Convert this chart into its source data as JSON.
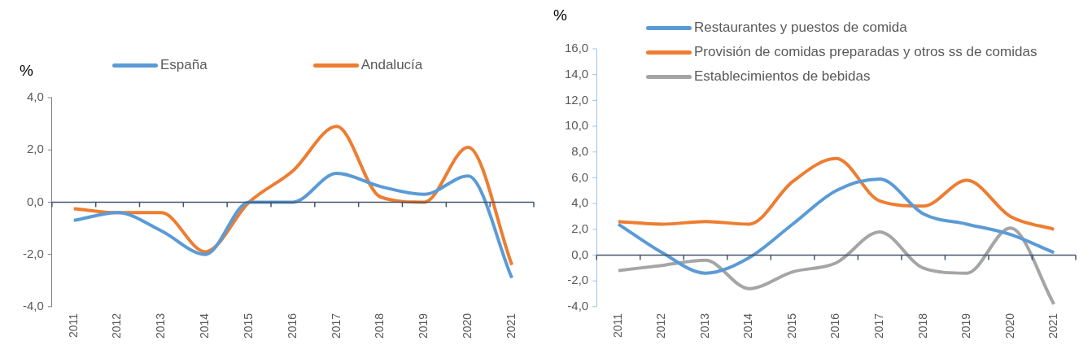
{
  "chart_data": [
    {
      "type": "line",
      "ylabel": "%",
      "categories": [
        "2011",
        "2012",
        "2013",
        "2014",
        "2015",
        "2016",
        "2017",
        "2018",
        "2019",
        "2020",
        "2021"
      ],
      "series": [
        {
          "name": "España",
          "color": "#5b9bd5",
          "values": [
            -0.7,
            -0.4,
            -1.1,
            -2.0,
            0.0,
            0.0,
            1.1,
            0.6,
            0.3,
            1.0,
            -2.9
          ]
        },
        {
          "name": "Andalucía",
          "color": "#ed7d31",
          "values": [
            -0.25,
            -0.4,
            -0.4,
            -1.9,
            0.0,
            1.2,
            2.9,
            0.2,
            0.0,
            2.1,
            -2.4
          ]
        }
      ],
      "ylim": [
        -4,
        4
      ],
      "yticks": [
        {
          "value": -4,
          "label": "-4,0"
        },
        {
          "value": -2,
          "label": "-2,0"
        },
        {
          "value": 0,
          "label": "0,0"
        },
        {
          "value": 2,
          "label": "2,0"
        },
        {
          "value": 4,
          "label": "4,0"
        }
      ],
      "legend": "top",
      "marker": "none"
    },
    {
      "type": "line",
      "ylabel": "%",
      "categories": [
        "2011",
        "2012",
        "2013",
        "2014",
        "2015",
        "2016",
        "2017",
        "2018",
        "2019",
        "2020",
        "2021"
      ],
      "series": [
        {
          "name": "Restaurantes y puestos de comida",
          "color": "#5b9bd5",
          "values": [
            2.4,
            0.2,
            -1.4,
            -0.2,
            2.4,
            5.0,
            5.9,
            3.2,
            2.4,
            1.6,
            0.2
          ]
        },
        {
          "name": "Provisión de comidas preparadas y otros ss de comidas",
          "color": "#ed7d31",
          "values": [
            2.6,
            2.4,
            2.6,
            2.4,
            5.7,
            7.5,
            4.2,
            3.8,
            5.8,
            3.0,
            2.0
          ]
        },
        {
          "name": "Establecimientos de bebidas",
          "color": "#a5a5a5",
          "values": [
            -1.2,
            -0.8,
            -0.4,
            -2.6,
            -1.3,
            -0.6,
            1.8,
            -1.0,
            -1.4,
            2.1,
            -3.8
          ]
        }
      ],
      "ylim": [
        -4,
        16
      ],
      "yticks": [
        {
          "value": -4,
          "label": "-4,0"
        },
        {
          "value": -2,
          "label": "-2,0"
        },
        {
          "value": 0,
          "label": "0,0"
        },
        {
          "value": 2,
          "label": "2,0"
        },
        {
          "value": 4,
          "label": "4,0"
        },
        {
          "value": 6,
          "label": "6,0"
        },
        {
          "value": 8,
          "label": "8,0"
        },
        {
          "value": 10,
          "label": "10,0"
        },
        {
          "value": 12,
          "label": "12,0"
        },
        {
          "value": 14,
          "label": "14,0"
        },
        {
          "value": 16,
          "label": "16,0"
        }
      ],
      "legend": "top left",
      "marker": "none"
    }
  ]
}
